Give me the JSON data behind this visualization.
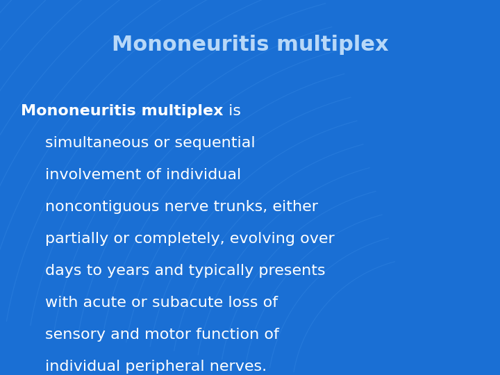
{
  "title": "Mononeuritis multiplex",
  "title_color": "#b8d8f8",
  "title_fontsize": 22,
  "bg_color": "#1a6fd4",
  "body_text_color": "#ffffff",
  "body_fontsize": 16,
  "bold_text": "Mononeuritis multiplex",
  "fig_width": 7.2,
  "fig_height": 5.4,
  "body_lines": [
    "simultaneous or sequential",
    "involvement of individual",
    "noncontiguous nerve trunks, either",
    "partially or completely, evolving over",
    "days to years and typically presents",
    "with acute or subacute loss of",
    "sensory and motor function of",
    "individual peripheral nerves."
  ],
  "arc_color": "#3d8fe8",
  "arc_alpha": 0.3,
  "num_arcs": 20
}
